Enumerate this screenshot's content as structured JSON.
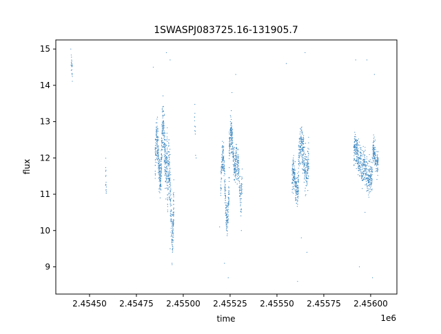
{
  "chart_data": {
    "type": "scatter",
    "title": "1SWASPJ083725.16-131905.7",
    "xlabel": "time",
    "ylabel": "flux",
    "x_offset_label": "1e6",
    "xlim": [
      2.45432,
      2.45614
    ],
    "ylim": [
      8.25,
      15.25
    ],
    "x_ticks": [
      2.4545,
      2.45475,
      2.455,
      2.45525,
      2.4555,
      2.45575,
      2.456
    ],
    "x_tick_labels": [
      "2.45450",
      "2.45475",
      "2.45500",
      "2.45525",
      "2.45550",
      "2.45575",
      "2.45600"
    ],
    "y_ticks": [
      9,
      10,
      11,
      12,
      13,
      14,
      15
    ],
    "y_tick_labels": [
      "9",
      "10",
      "11",
      "12",
      "13",
      "14",
      "15"
    ],
    "grid": false,
    "marker_color": "#3a86c0",
    "series": [
      {
        "segments": [
          {
            "x0": 2.4544,
            "x1": 2.45441,
            "center": 14.5,
            "amp": 0.15,
            "spread": 0.25,
            "n": 20
          },
          {
            "x0": 2.454585,
            "x1": 2.45459,
            "center": 11.4,
            "amp": 0.2,
            "spread": 0.3,
            "n": 15
          },
          {
            "x0": 2.45485,
            "x1": 2.454885,
            "center": 12.0,
            "amp": 0.5,
            "spread": 0.45,
            "n": 260
          },
          {
            "x0": 2.454885,
            "x1": 2.454915,
            "center": 12.3,
            "amp": 0.6,
            "spread": 0.55,
            "n": 220
          },
          {
            "x0": 2.454915,
            "x1": 2.45495,
            "center": 10.8,
            "amp": 0.9,
            "spread": 0.6,
            "n": 240
          },
          {
            "x0": 2.45506,
            "x1": 2.45507,
            "center": 12.6,
            "amp": 0.6,
            "spread": 0.4,
            "n": 12
          },
          {
            "x0": 2.4552,
            "x1": 2.455245,
            "center": 11.2,
            "amp": 0.9,
            "spread": 0.35,
            "n": 260
          },
          {
            "x0": 2.455245,
            "x1": 2.455285,
            "center": 12.2,
            "amp": 0.5,
            "spread": 0.35,
            "n": 260
          },
          {
            "x0": 2.455285,
            "x1": 2.455315,
            "center": 11.4,
            "amp": 0.5,
            "spread": 0.35,
            "n": 120
          },
          {
            "x0": 2.45558,
            "x1": 2.455615,
            "center": 11.3,
            "amp": 0.3,
            "spread": 0.35,
            "n": 200
          },
          {
            "x0": 2.455615,
            "x1": 2.45567,
            "center": 12.0,
            "amp": 0.4,
            "spread": 0.45,
            "n": 300
          },
          {
            "x0": 2.45591,
            "x1": 2.45595,
            "center": 12.1,
            "amp": 0.2,
            "spread": 0.35,
            "n": 200
          },
          {
            "x0": 2.45595,
            "x1": 2.45601,
            "center": 11.6,
            "amp": 0.2,
            "spread": 0.4,
            "n": 260
          },
          {
            "x0": 2.45601,
            "x1": 2.45604,
            "center": 12.0,
            "amp": 0.2,
            "spread": 0.3,
            "n": 150
          }
        ],
        "outliers": [
          [
            2.45432,
            13.9
          ],
          [
            2.4544,
            15.0
          ],
          [
            2.45484,
            14.5
          ],
          [
            2.45491,
            14.9
          ],
          [
            2.45493,
            14.7
          ],
          [
            2.45494,
            9.1
          ],
          [
            2.455194,
            10.1
          ],
          [
            2.45522,
            9.1
          ],
          [
            2.45524,
            8.7
          ],
          [
            2.45528,
            14.3
          ],
          [
            2.45526,
            13.8
          ],
          [
            2.45555,
            14.6
          ],
          [
            2.45561,
            8.6
          ],
          [
            2.45565,
            14.9
          ],
          [
            2.45566,
            9.4
          ],
          [
            2.45592,
            14.7
          ],
          [
            2.45594,
            9.0
          ],
          [
            2.45598,
            14.7
          ],
          [
            2.45601,
            8.7
          ],
          [
            2.45602,
            14.3
          ],
          [
            2.4549,
            13.2
          ],
          [
            2.45531,
            10.0
          ],
          [
            2.45563,
            9.8
          ],
          [
            2.45597,
            10.5
          ],
          [
            2.45493,
            9.5
          ]
        ]
      }
    ]
  }
}
